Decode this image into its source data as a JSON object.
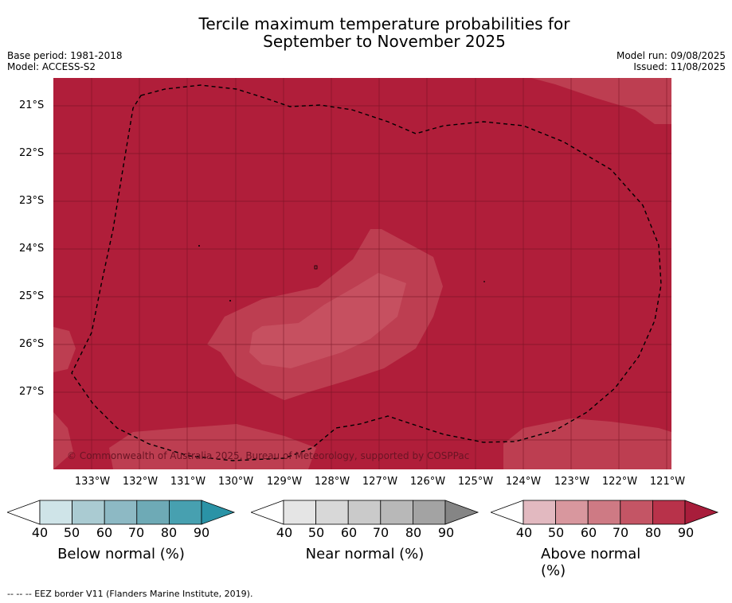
{
  "title": {
    "line1": "Tercile maximum temperature probabilities for",
    "line2": "September to November 2025"
  },
  "meta": {
    "base_period": "Base period: 1981-2018",
    "model": "Model: ACCESS-S2",
    "model_run": "Model run: 09/08/2025",
    "issued": "Issued: 11/08/2025"
  },
  "map": {
    "copyright": "© Commonwealth of Australia 2025, Bureau of Meteorology, supported by COSPPac",
    "lat_labels": [
      "21°S",
      "22°S",
      "23°S",
      "24°S",
      "25°S",
      "26°S",
      "27°S"
    ],
    "lon_labels": [
      "133°W",
      "132°W",
      "131°W",
      "130°W",
      "129°W",
      "128°W",
      "127°W",
      "126°W",
      "125°W",
      "124°W",
      "123°W",
      "122°W",
      "121°W"
    ],
    "colors": {
      "above_80_90": "#b01e3a",
      "above_70_80": "#bd3e51",
      "above_60_70": "#c65060"
    }
  },
  "colorbars": [
    {
      "label": "Below normal (%)",
      "ticks": [
        "40",
        "50",
        "60",
        "70",
        "80",
        "90"
      ],
      "colors": [
        "#ffffff",
        "#cfe4e8",
        "#aacbd2",
        "#8db9c4",
        "#6eaab6",
        "#47a0b0",
        "#2a93a6"
      ]
    },
    {
      "label": "Near normal (%)",
      "ticks": [
        "40",
        "50",
        "60",
        "70",
        "80",
        "90"
      ],
      "colors": [
        "#ffffff",
        "#e5e5e5",
        "#d8d8d8",
        "#cacaca",
        "#b8b8b8",
        "#a3a3a3",
        "#858585"
      ]
    },
    {
      "label": "Above normal (%)",
      "ticks": [
        "40",
        "50",
        "60",
        "70",
        "80",
        "90"
      ],
      "colors": [
        "#ffffff",
        "#e2b9c0",
        "#d8979e",
        "#ce7a84",
        "#c45565",
        "#b8324a",
        "#a81d3b"
      ]
    }
  ],
  "footer": "--  --  -- EEZ border V11 (Flanders Marine Institute, 2019)."
}
